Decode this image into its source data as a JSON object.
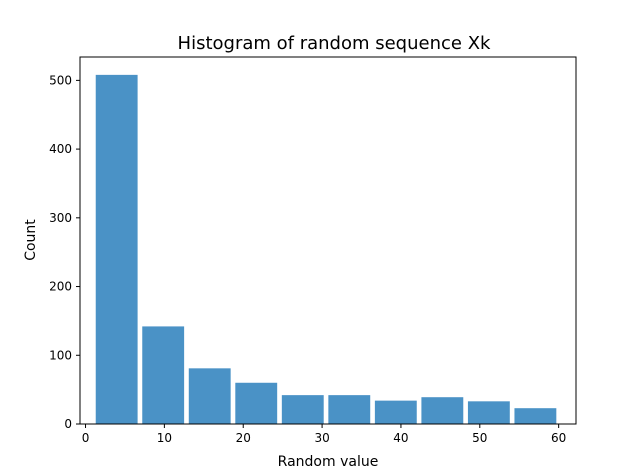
{
  "chart_data": {
    "type": "bar",
    "title": "Histogram of random sequence Xk",
    "xlabel": "Random value",
    "ylabel": "Count",
    "xlim": [
      -0.7,
      62.2
    ],
    "ylim": [
      0,
      534
    ],
    "bin_edges": [
      1,
      6.9,
      12.8,
      18.7,
      24.6,
      30.5,
      36.4,
      42.3,
      48.2,
      54.1,
      60
    ],
    "bar_fraction": 0.9,
    "values": [
      508,
      142,
      81,
      60,
      42,
      42,
      34,
      39,
      33,
      23
    ],
    "x_ticks": [
      0,
      10,
      20,
      30,
      40,
      50,
      60
    ],
    "y_ticks": [
      0,
      100,
      200,
      300,
      400,
      500
    ],
    "bar_color": "#4a92c6",
    "grid": false,
    "legend": "none"
  }
}
